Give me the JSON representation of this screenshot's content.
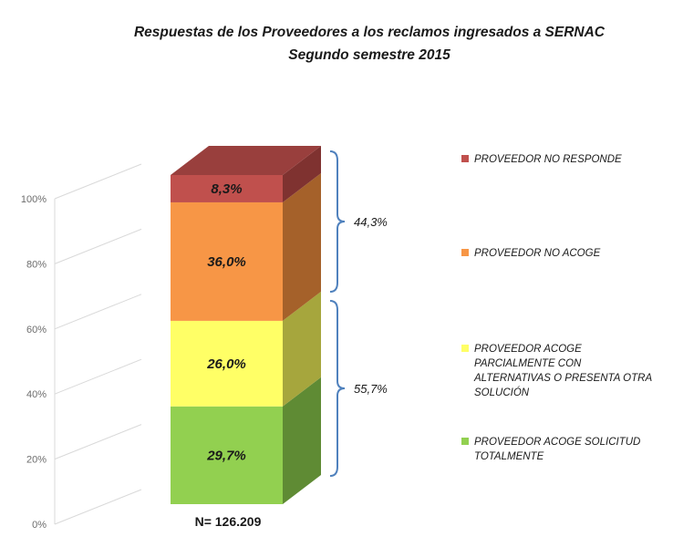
{
  "chart_data": {
    "type": "bar",
    "stacked": true,
    "three_d": true,
    "title": [
      "Respuestas de los Proveedores a los reclamos ingresados a SERNAC",
      "Segundo semestre 2015"
    ],
    "y_ticks": [
      "0%",
      "20%",
      "40%",
      "60%",
      "80%",
      "100%"
    ],
    "ylim": [
      0,
      100
    ],
    "grid": true,
    "legend_position": "right",
    "sample_size_label": "N= 126.209",
    "series": [
      {
        "key": "acoge_total",
        "value": 29.7,
        "label": "29,7%",
        "color": "#92d050",
        "side_color": "#5f8b34",
        "top_color": "#7aae45",
        "legend": [
          "PROVEEDOR ACOGE SOLICITUD",
          "TOTALMENTE"
        ]
      },
      {
        "key": "acoge_parcial",
        "value": 26.0,
        "label": "26,0%",
        "color": "#ffff66",
        "side_color": "#a6a63d",
        "top_color": "#cccc52",
        "legend": [
          "PROVEEDOR ACOGE",
          "PARCIALMENTE CON",
          "ALTERNATIVAS O PRESENTA OTRA",
          "SOLUCIÓN"
        ]
      },
      {
        "key": "no_acoge",
        "value": 36.0,
        "label": "36,0%",
        "color": "#f79646",
        "side_color": "#a5612a",
        "top_color": "#c9783a",
        "legend": [
          "PROVEEDOR NO ACOGE"
        ]
      },
      {
        "key": "no_responde",
        "value": 8.3,
        "label": "8,3%",
        "color": "#c0504d",
        "side_color": "#7f3230",
        "top_color": "#993f3d",
        "legend": [
          "PROVEEDOR NO RESPONDE"
        ]
      }
    ],
    "braces": [
      {
        "label": "44,3%",
        "from_series": "no_acoge",
        "to_series": "no_responde"
      },
      {
        "label": "55,7%",
        "from_series": "acoge_total",
        "to_series": "acoge_parcial"
      }
    ]
  }
}
